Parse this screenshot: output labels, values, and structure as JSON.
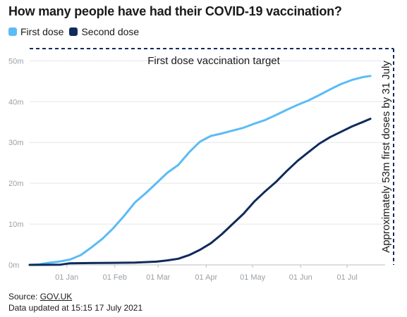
{
  "chart_data": {
    "type": "line",
    "title": "How many people have had their COVID-19 vaccination?",
    "ylim": [
      0,
      53
    ],
    "yticks": [
      0,
      10,
      20,
      30,
      40,
      50
    ],
    "ytick_labels": [
      "0m",
      "10m",
      "20m",
      "30m",
      "40m",
      "50m"
    ],
    "xlim": [
      "2020-12-08",
      "2021-07-31"
    ],
    "xticks": [
      "2021-01-01",
      "2021-02-01",
      "2021-03-01",
      "2021-04-01",
      "2021-05-01",
      "2021-06-01",
      "2021-07-01"
    ],
    "xtick_labels": [
      "01 Jan",
      "01 Feb",
      "01 Mar",
      "01 Apr",
      "01 May",
      "01 Jun",
      "01 Jul"
    ],
    "grid": "horizontal",
    "legend_position": "top-left",
    "series": [
      {
        "name": "First dose",
        "color": "#5bbcf5",
        "points": [
          [
            "2020-12-08",
            0
          ],
          [
            "2020-12-14",
            0.1
          ],
          [
            "2020-12-20",
            0.5
          ],
          [
            "2020-12-27",
            0.8
          ],
          [
            "2021-01-03",
            1.3
          ],
          [
            "2021-01-10",
            2.4
          ],
          [
            "2021-01-17",
            4.3
          ],
          [
            "2021-01-24",
            6.4
          ],
          [
            "2021-01-31",
            9.0
          ],
          [
            "2021-02-07",
            12.0
          ],
          [
            "2021-02-14",
            15.3
          ],
          [
            "2021-02-21",
            17.6
          ],
          [
            "2021-02-28",
            20.1
          ],
          [
            "2021-03-07",
            22.6
          ],
          [
            "2021-03-14",
            24.5
          ],
          [
            "2021-03-21",
            27.6
          ],
          [
            "2021-03-28",
            30.2
          ],
          [
            "2021-04-04",
            31.6
          ],
          [
            "2021-04-11",
            32.2
          ],
          [
            "2021-04-18",
            32.9
          ],
          [
            "2021-04-25",
            33.6
          ],
          [
            "2021-05-02",
            34.6
          ],
          [
            "2021-05-09",
            35.5
          ],
          [
            "2021-05-16",
            36.7
          ],
          [
            "2021-05-23",
            38.0
          ],
          [
            "2021-05-30",
            39.2
          ],
          [
            "2021-06-06",
            40.3
          ],
          [
            "2021-06-13",
            41.6
          ],
          [
            "2021-06-20",
            43.0
          ],
          [
            "2021-06-27",
            44.3
          ],
          [
            "2021-07-04",
            45.3
          ],
          [
            "2021-07-11",
            46.0
          ],
          [
            "2021-07-16",
            46.3
          ]
        ]
      },
      {
        "name": "Second dose",
        "color": "#102a5c",
        "points": [
          [
            "2020-12-08",
            0
          ],
          [
            "2020-12-28",
            0.05
          ],
          [
            "2021-01-03",
            0.4
          ],
          [
            "2021-01-31",
            0.5
          ],
          [
            "2021-02-14",
            0.55
          ],
          [
            "2021-02-28",
            0.8
          ],
          [
            "2021-03-07",
            1.1
          ],
          [
            "2021-03-14",
            1.5
          ],
          [
            "2021-03-21",
            2.4
          ],
          [
            "2021-03-28",
            3.7
          ],
          [
            "2021-04-04",
            5.3
          ],
          [
            "2021-04-11",
            7.5
          ],
          [
            "2021-04-18",
            10.0
          ],
          [
            "2021-04-25",
            12.5
          ],
          [
            "2021-05-02",
            15.5
          ],
          [
            "2021-05-09",
            18.0
          ],
          [
            "2021-05-16",
            20.3
          ],
          [
            "2021-05-23",
            23.0
          ],
          [
            "2021-05-30",
            25.5
          ],
          [
            "2021-06-06",
            27.6
          ],
          [
            "2021-06-13",
            29.7
          ],
          [
            "2021-06-20",
            31.3
          ],
          [
            "2021-06-27",
            32.6
          ],
          [
            "2021-07-04",
            33.9
          ],
          [
            "2021-07-11",
            35.0
          ],
          [
            "2021-07-16",
            35.8
          ]
        ]
      }
    ],
    "target": {
      "value": 53,
      "date": "2021-07-31",
      "color": "#102a5c",
      "horizontal_label": "First dose vaccination target",
      "vertical_label": "Approximately 53m first doses by 31 July"
    }
  },
  "footer": {
    "source_prefix": "Source: ",
    "source_link": "GOV.UK",
    "updated": "Data updated at 15:15 17 July 2021"
  }
}
